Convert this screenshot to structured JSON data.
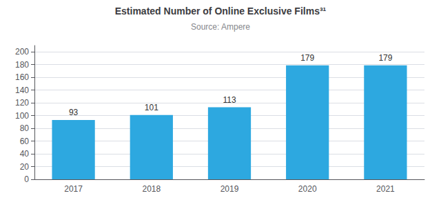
{
  "chart_data": {
    "type": "bar",
    "title": "Estimated Number of Online Exclusive Films³¹",
    "subtitle": "Source: Ampere",
    "categories": [
      "2017",
      "2018",
      "2019",
      "2020",
      "2021"
    ],
    "values": [
      93,
      101,
      113,
      179,
      179
    ],
    "color": "#2DA8E0",
    "ylim": [
      0,
      210
    ],
    "yticks": [
      0,
      20,
      40,
      60,
      80,
      100,
      120,
      140,
      160,
      180,
      200
    ],
    "grid": true,
    "data_labels": true
  }
}
